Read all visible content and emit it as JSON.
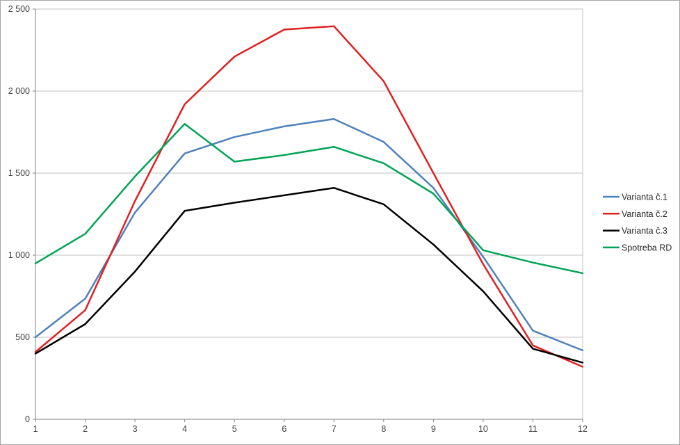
{
  "window": {
    "background_color": "#ffffff",
    "border_color": "#a6a6a6"
  },
  "chart_data": {
    "type": "line",
    "title": "",
    "xlabel": "",
    "ylabel": "",
    "x": [
      1,
      2,
      3,
      4,
      5,
      6,
      7,
      8,
      9,
      10,
      11,
      12
    ],
    "xtick_labels": [
      "1",
      "2",
      "3",
      "4",
      "5",
      "6",
      "7",
      "8",
      "9",
      "10",
      "11",
      "12"
    ],
    "series": [
      {
        "name": "Varianta č.1",
        "color": "#4F81BD",
        "values": [
          500,
          735,
          1260,
          1620,
          1720,
          1785,
          1830,
          1690,
          1410,
          990,
          540,
          420
        ]
      },
      {
        "name": "Varianta č.2",
        "color": "#E02020",
        "values": [
          410,
          665,
          1330,
          1920,
          2210,
          2375,
          2395,
          2060,
          1500,
          945,
          450,
          320
        ]
      },
      {
        "name": "Varianta č.3",
        "color": "#000000",
        "values": [
          400,
          580,
          900,
          1270,
          1320,
          1365,
          1410,
          1310,
          1065,
          780,
          430,
          345
        ]
      },
      {
        "name": "Spotreba RD",
        "color": "#00A455",
        "values": [
          950,
          1130,
          1480,
          1800,
          1570,
          1610,
          1660,
          1560,
          1375,
          1030,
          955,
          890
        ]
      }
    ],
    "xlim": [
      1,
      12
    ],
    "ylim": [
      0,
      2500
    ],
    "ytick_step": 500,
    "ytick_labels": [
      "0",
      "500",
      "1 000",
      "1 500",
      "2 000",
      "2 500"
    ],
    "grid": true,
    "legend_position": "right",
    "gridline_color": "#c0c0c0",
    "axis_color": "#808080",
    "tick_label_color": "#404040"
  }
}
